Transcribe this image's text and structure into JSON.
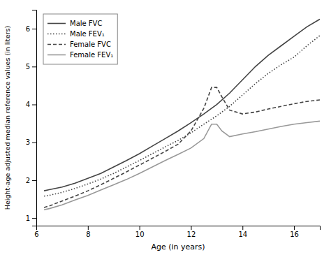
{
  "chart_data": {
    "type": "line",
    "xlabel": "Age (in years)",
    "ylabel": "Height-age adjusted median reference values (in liters)",
    "xlim": [
      6,
      17
    ],
    "ylim": [
      0.8,
      6.5
    ],
    "xticks": [
      6,
      8,
      10,
      12,
      14,
      16
    ],
    "yticks": [
      1,
      2,
      3,
      4,
      5,
      6
    ],
    "grid": false,
    "legend": "top-left",
    "series": [
      {
        "name": "Male FVC",
        "color": "#444444",
        "line_style": "solid",
        "x": [
          6.3,
          6.5,
          7.0,
          7.5,
          8.0,
          8.5,
          9.0,
          9.5,
          10.0,
          10.5,
          11.0,
          11.5,
          12.0,
          12.5,
          13.0,
          13.5,
          14.0,
          14.5,
          15.0,
          15.5,
          16.0,
          16.5,
          17.0
        ],
        "values": [
          1.72,
          1.75,
          1.82,
          1.92,
          2.05,
          2.18,
          2.35,
          2.52,
          2.7,
          2.9,
          3.1,
          3.3,
          3.52,
          3.75,
          4.0,
          4.3,
          4.65,
          5.0,
          5.3,
          5.55,
          5.8,
          6.05,
          6.25
        ]
      },
      {
        "name": "Male FEV₁",
        "color": "#444444",
        "line_style": "dotted",
        "x": [
          6.3,
          6.5,
          7.0,
          7.5,
          8.0,
          8.5,
          9.0,
          9.5,
          10.0,
          10.5,
          11.0,
          11.5,
          12.0,
          12.5,
          13.0,
          13.5,
          14.0,
          14.5,
          15.0,
          15.5,
          16.0,
          16.5,
          17.0
        ],
        "values": [
          1.58,
          1.6,
          1.68,
          1.78,
          1.9,
          2.03,
          2.18,
          2.35,
          2.52,
          2.7,
          2.88,
          3.05,
          3.25,
          3.48,
          3.7,
          3.95,
          4.25,
          4.55,
          4.82,
          5.05,
          5.25,
          5.55,
          5.82
        ]
      },
      {
        "name": "Female FVC",
        "color": "#444444",
        "line_style": "dashed",
        "x": [
          6.3,
          6.5,
          7.0,
          7.5,
          8.0,
          8.5,
          9.0,
          9.5,
          10.0,
          10.5,
          11.0,
          11.5,
          12.0,
          12.5,
          12.8,
          13.0,
          13.2,
          13.5,
          14.0,
          14.5,
          15.0,
          15.5,
          16.0,
          16.5,
          17.0
        ],
        "values": [
          1.28,
          1.32,
          1.45,
          1.58,
          1.72,
          1.88,
          2.05,
          2.22,
          2.4,
          2.58,
          2.76,
          2.95,
          3.3,
          3.9,
          4.45,
          4.45,
          4.2,
          3.85,
          3.75,
          3.8,
          3.88,
          3.95,
          4.02,
          4.08,
          4.12
        ]
      },
      {
        "name": "Female FEV₁",
        "color": "#999999",
        "line_style": "solid",
        "x": [
          6.3,
          6.5,
          7.0,
          7.5,
          8.0,
          8.5,
          9.0,
          9.5,
          10.0,
          10.5,
          11.0,
          11.5,
          12.0,
          12.5,
          12.8,
          13.0,
          13.2,
          13.5,
          14.0,
          14.5,
          15.0,
          15.5,
          16.0,
          16.5,
          17.0
        ],
        "values": [
          1.22,
          1.25,
          1.35,
          1.48,
          1.6,
          1.74,
          1.88,
          2.02,
          2.18,
          2.35,
          2.52,
          2.68,
          2.85,
          3.1,
          3.48,
          3.48,
          3.3,
          3.15,
          3.22,
          3.28,
          3.35,
          3.42,
          3.48,
          3.52,
          3.56
        ]
      }
    ]
  }
}
